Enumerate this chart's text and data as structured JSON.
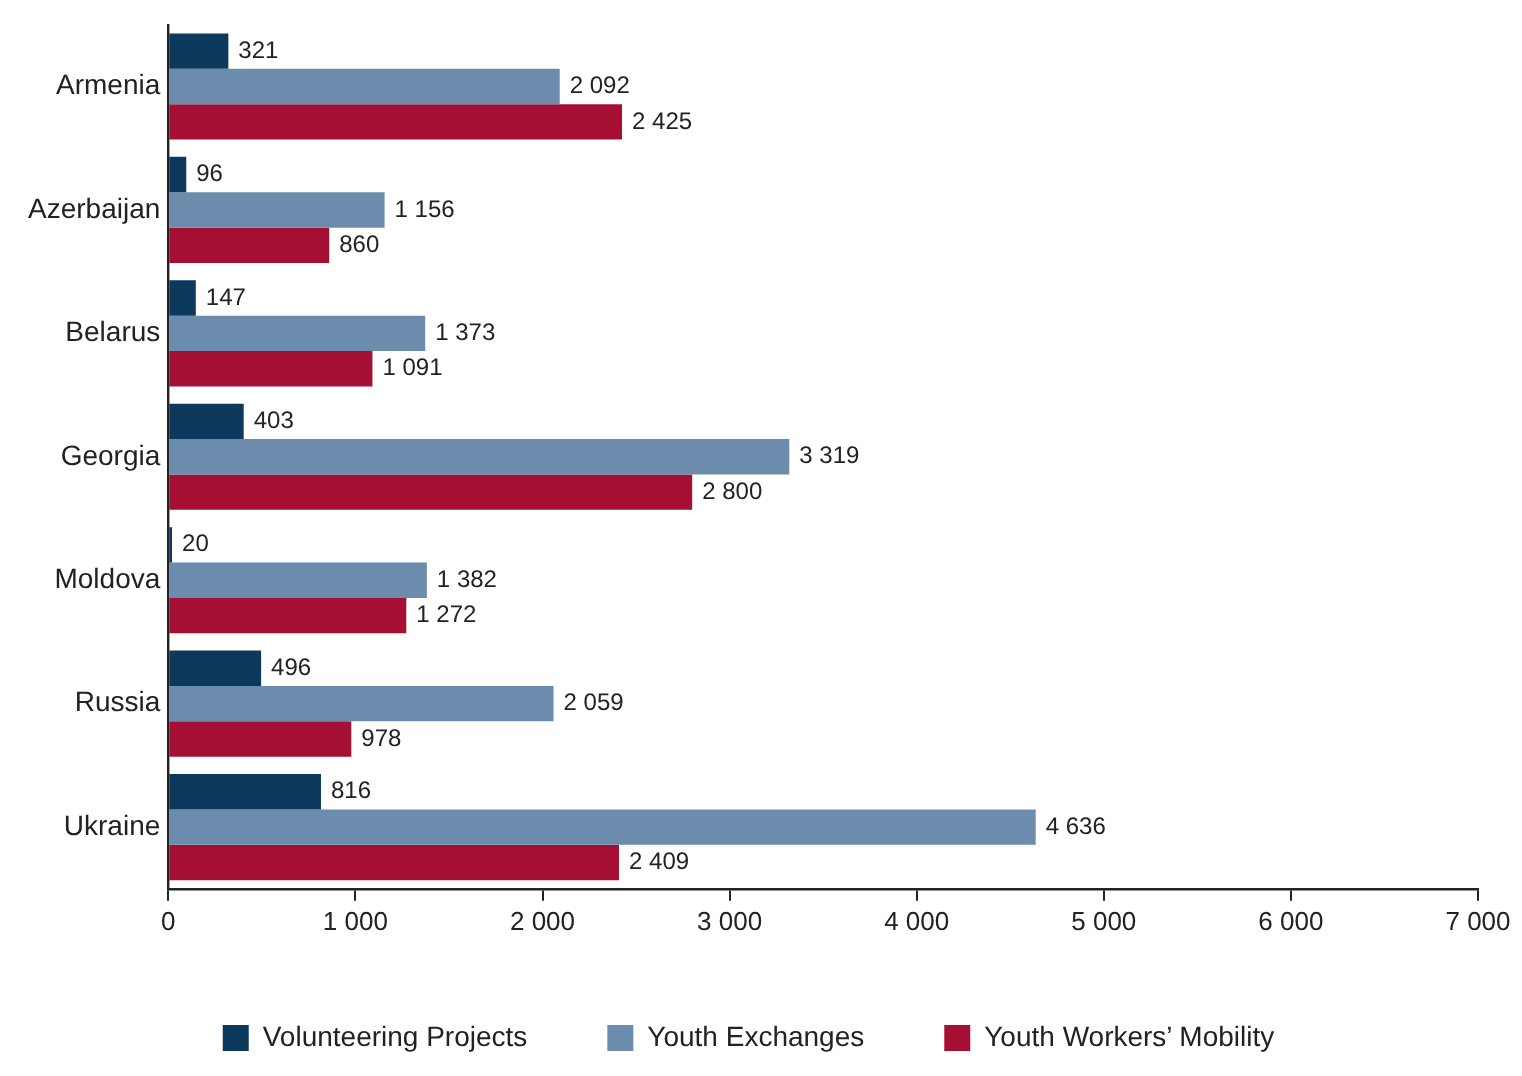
{
  "chart_data": {
    "type": "bar",
    "orientation": "horizontal",
    "categories": [
      "Armenia",
      "Azerbaijan",
      "Belarus",
      "Georgia",
      "Moldova",
      "Russia",
      "Ukraine"
    ],
    "series": [
      {
        "name": "Volunteering Projects",
        "color": "#0d3a5c",
        "values": [
          321,
          96,
          147,
          403,
          20,
          496,
          816
        ],
        "value_labels": [
          "321",
          "96",
          "147",
          "403",
          "20",
          "496",
          "816"
        ]
      },
      {
        "name": "Youth Exchanges",
        "color": "#6b8cad",
        "values": [
          2092,
          1156,
          1373,
          3319,
          1382,
          2059,
          4636
        ],
        "value_labels": [
          "2 092",
          "1 156",
          "1 373",
          "3 319",
          "1 382",
          "2 059",
          "4 636"
        ]
      },
      {
        "name": "Youth Workers’ Mobility",
        "color": "#a50f33",
        "values": [
          2425,
          860,
          1091,
          2800,
          1272,
          978,
          2409
        ],
        "value_labels": [
          "2 425",
          "860",
          "1 091",
          "2 800",
          "1 272",
          "978",
          "2 409"
        ]
      }
    ],
    "xlim": [
      0,
      7000
    ],
    "xticks": [
      0,
      {
        "value": 1000,
        "label": "1 000"
      },
      {
        "value": 2000,
        "label": "2 000"
      },
      {
        "value": 3000,
        "label": "3 000"
      },
      {
        "value": 4000,
        "label": "4 000"
      },
      {
        "value": 5000,
        "label": "5 000"
      },
      {
        "value": 6000,
        "label": "6 000"
      },
      {
        "value": 7000,
        "label": "7 000"
      }
    ],
    "grid": false,
    "legend": "bottom"
  }
}
